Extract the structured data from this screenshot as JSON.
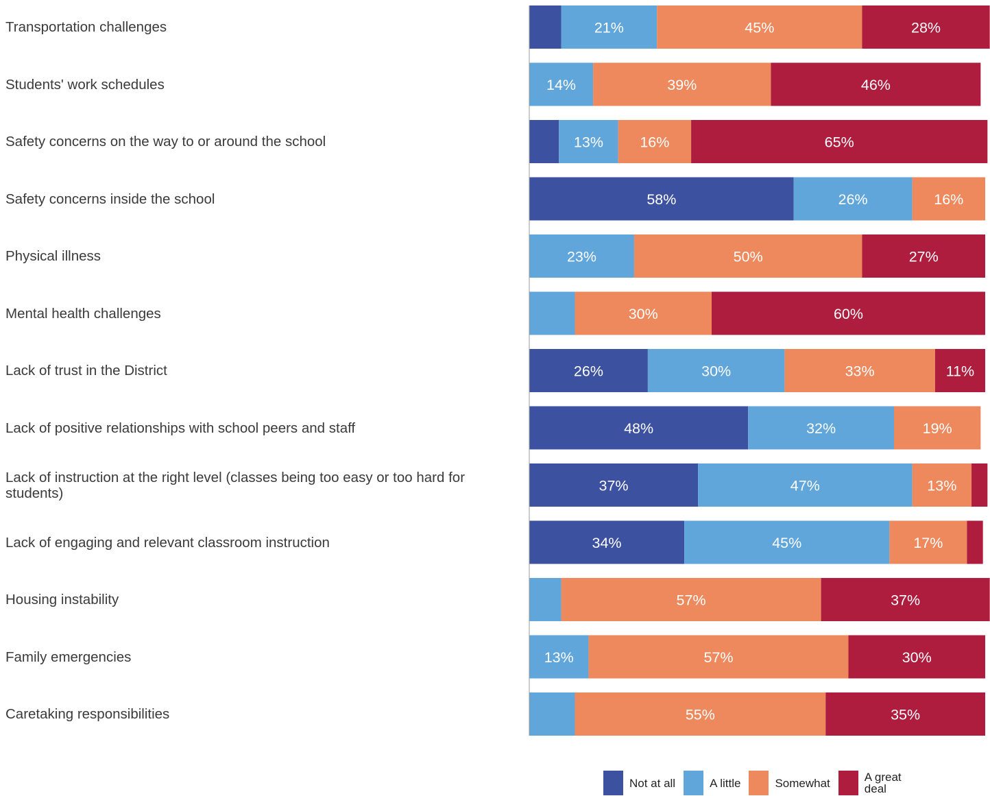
{
  "chart_data": {
    "type": "bar",
    "orientation": "horizontal",
    "stacked": true,
    "categories": [
      "Transportation challenges",
      "Students' work schedules",
      "Safety concerns on the way to or around the school",
      "Safety concerns inside the school",
      "Physical illness",
      "Mental health challenges",
      "Lack of trust in the District",
      "Lack of positive relationships with school peers and staff",
      "Lack of instruction at the right level (classes being too easy or too hard for students)",
      "Lack of engaging and relevant classroom instruction",
      "Housing instability",
      "Family emergencies",
      "Caretaking responsibilities"
    ],
    "series": [
      {
        "name": "Not at all",
        "color": "#3c52a0",
        "values": [
          7,
          0,
          6.5,
          58,
          0,
          0,
          26,
          48,
          37,
          34,
          0,
          0,
          0
        ],
        "labels": [
          "",
          "",
          "",
          "58%",
          "",
          "",
          "26%",
          "48%",
          "37%",
          "34%",
          "",
          "",
          ""
        ]
      },
      {
        "name": "A little",
        "color": "#60a6da",
        "values": [
          21,
          14,
          13,
          26,
          23,
          10,
          30,
          32,
          47,
          45,
          7,
          13,
          10
        ],
        "labels": [
          "21%",
          "14%",
          "13%",
          "26%",
          "23%",
          "",
          "30%",
          "32%",
          "47%",
          "45%",
          "",
          "13%",
          ""
        ]
      },
      {
        "name": "Somewhat",
        "color": "#ee895d",
        "values": [
          45,
          39,
          16,
          16,
          50,
          30,
          33,
          19,
          13,
          17,
          57,
          57,
          55
        ],
        "labels": [
          "45%",
          "39%",
          "16%",
          "16%",
          "50%",
          "30%",
          "33%",
          "19%",
          "13%",
          "17%",
          "57%",
          "57%",
          "55%"
        ]
      },
      {
        "name": "A great deal",
        "color": "#ae1c3e",
        "values": [
          28,
          46,
          65,
          0,
          27,
          60,
          11,
          0,
          3.5,
          3.5,
          37,
          30,
          35
        ],
        "labels": [
          "28%",
          "46%",
          "65%",
          "",
          "27%",
          "60%",
          "11%",
          "",
          "",
          "",
          "37%",
          "30%",
          "35%"
        ]
      }
    ],
    "xlim": [
      0,
      100
    ],
    "legend_position": "bottom-right",
    "grid": false
  }
}
